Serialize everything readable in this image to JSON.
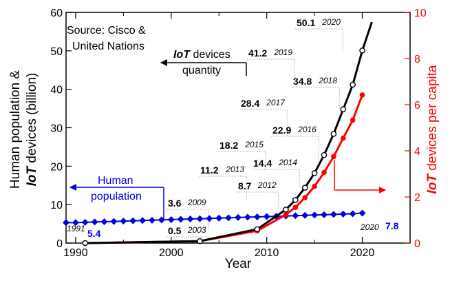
{
  "chart_data": {
    "type": "line",
    "xlabel": "Year",
    "ylabel_left": {
      "line1": "Human population &",
      "line2_bold": "IoT",
      "line2_rest": " devices (billion)"
    },
    "ylabel_right": {
      "bold": "IoT",
      "rest": " devices per capita"
    },
    "xlim": [
      1989,
      2025
    ],
    "ylim_left": [
      0,
      60
    ],
    "ylim_right": [
      0,
      10
    ],
    "x_ticks": [
      1990,
      2000,
      2010,
      2020
    ],
    "y_ticks_left": [
      0,
      10,
      20,
      30,
      40,
      50,
      60
    ],
    "y_ticks_right": [
      0,
      2,
      4,
      6,
      8,
      10
    ],
    "colors": {
      "iot": "#000000",
      "population": "#0000dd",
      "per_capita": "#ff0000"
    },
    "source_text": [
      "Source: Cisco &",
      "United Nations"
    ],
    "iot_arrow_label": {
      "bold": "IoT",
      "rest": " devices",
      "line2": "quantity"
    },
    "human_arrow_label": [
      "Human",
      "population"
    ],
    "series": [
      {
        "key": "iot",
        "axis": "left",
        "x": [
          1991,
          2003,
          2009,
          2012,
          2013,
          2014,
          2015,
          2016,
          2017,
          2018,
          2019,
          2020,
          2021
        ],
        "y": [
          0.0,
          0.5,
          3.6,
          8.7,
          11.2,
          14.4,
          18.2,
          22.9,
          28.4,
          34.8,
          41.2,
          50.1,
          57.5
        ],
        "markers": [
          true,
          true,
          true,
          true,
          true,
          true,
          true,
          true,
          true,
          true,
          true,
          true,
          false
        ]
      },
      {
        "key": "per_capita",
        "axis": "right",
        "x": [
          1991,
          2003,
          2009,
          2012,
          2013,
          2014,
          2015,
          2016,
          2017,
          2018,
          2019,
          2020
        ],
        "y": [
          0.0,
          0.08,
          0.53,
          1.23,
          1.55,
          1.97,
          2.46,
          3.06,
          3.75,
          4.55,
          5.33,
          6.42
        ]
      },
      {
        "key": "population",
        "axis": "left",
        "x": [
          1989,
          1990,
          1991,
          1992,
          1993,
          1994,
          1995,
          1996,
          1997,
          1998,
          1999,
          2000,
          2001,
          2002,
          2003,
          2004,
          2005,
          2006,
          2007,
          2008,
          2009,
          2010,
          2011,
          2012,
          2013,
          2014,
          2015,
          2016,
          2017,
          2018,
          2019,
          2020
        ],
        "y": [
          5.3,
          5.33,
          5.4,
          5.48,
          5.56,
          5.63,
          5.71,
          5.79,
          5.86,
          5.94,
          6.02,
          6.1,
          6.18,
          6.26,
          6.33,
          6.41,
          6.49,
          6.57,
          6.65,
          6.73,
          6.81,
          6.89,
          6.97,
          7.05,
          7.13,
          7.21,
          7.29,
          7.37,
          7.45,
          7.54,
          7.63,
          7.8
        ]
      }
    ],
    "annotations": [
      {
        "value": "50.1",
        "year": "2020"
      },
      {
        "value": "41.2",
        "year": "2019"
      },
      {
        "value": "34.8",
        "year": "2018"
      },
      {
        "value": "28.4",
        "year": "2017"
      },
      {
        "value": "22.9",
        "year": "2016"
      },
      {
        "value": "18.2",
        "year": "2015"
      },
      {
        "value": "14.4",
        "year": "2014"
      },
      {
        "value": "11.2",
        "year": "2013"
      },
      {
        "value": "8.7",
        "year": "2012"
      },
      {
        "value": "3.6",
        "year": "2009"
      },
      {
        "value": "0.5",
        "year": "2003"
      },
      {
        "value": "5.4",
        "year": "1991"
      },
      {
        "value": "7.8",
        "year": "2020"
      }
    ]
  }
}
